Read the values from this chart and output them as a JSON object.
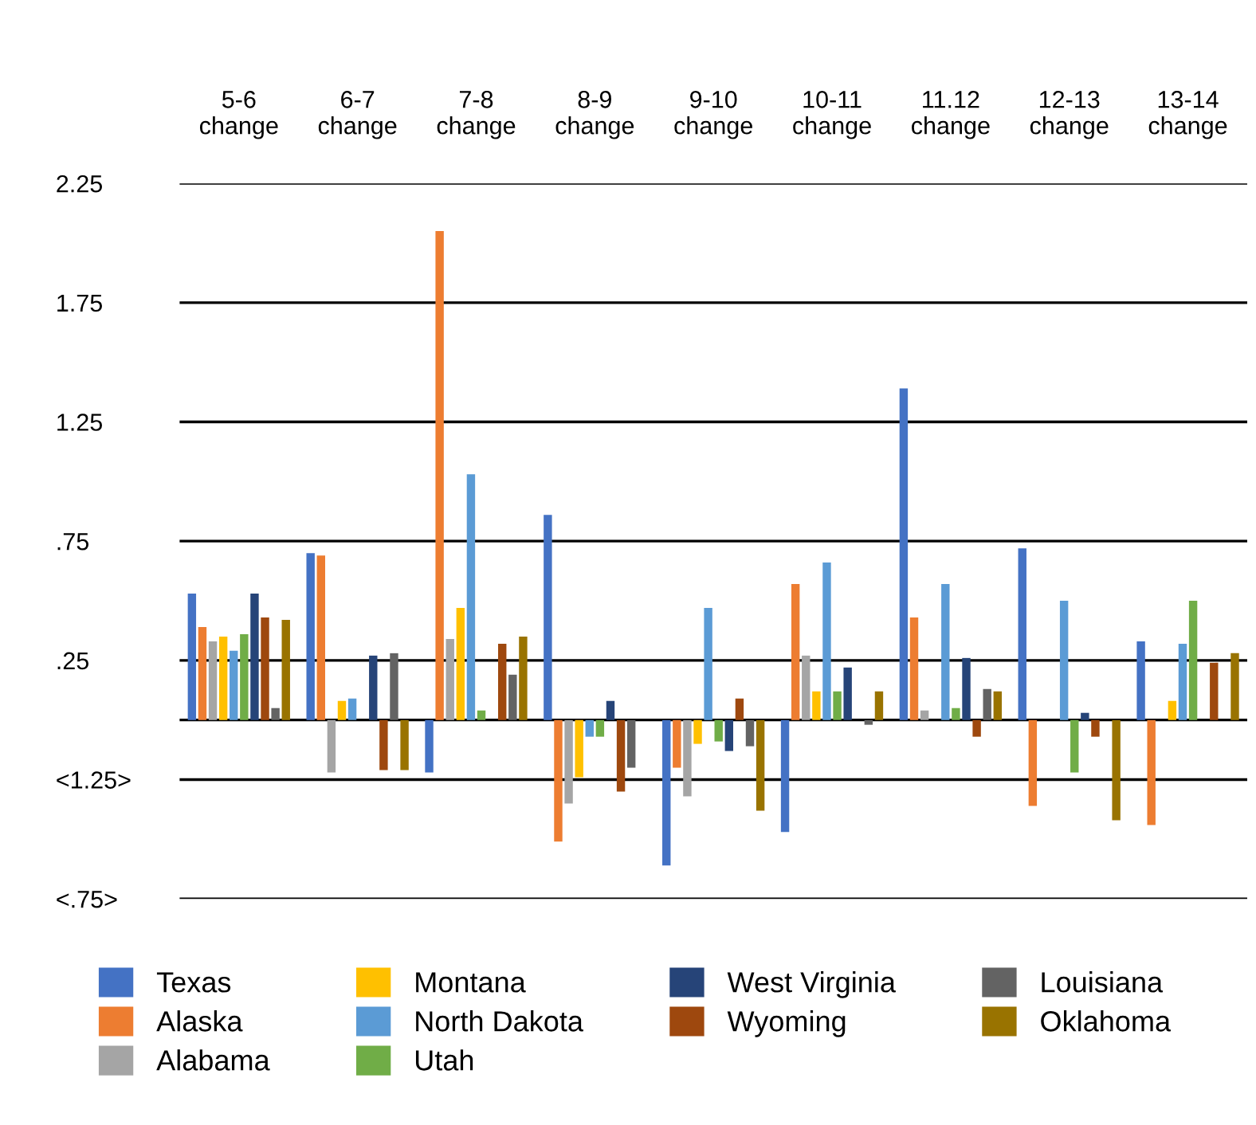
{
  "chart_data": {
    "type": "bar",
    "categories": [
      "5-6\nchange",
      "6-7\nchange",
      "7-8\nchange",
      "8-9\nchange",
      "9-10\nchange",
      "10-11\nchange",
      "11.12\nchange",
      "12-13\nchange",
      "13-14\nchange"
    ],
    "series": [
      {
        "name": "Texas",
        "color": "#4472c4",
        "values": [
          0.53,
          0.7,
          -0.22,
          0.86,
          -0.61,
          -0.47,
          1.39,
          0.72,
          0.33
        ]
      },
      {
        "name": "Alaska",
        "color": "#ed7d31",
        "values": [
          0.39,
          0.69,
          2.05,
          -0.51,
          -0.2,
          0.57,
          0.43,
          -0.36,
          -0.44
        ]
      },
      {
        "name": "Alabama",
        "color": "#a5a5a5",
        "values": [
          0.33,
          -0.22,
          0.34,
          -0.35,
          -0.32,
          0.27,
          0.04,
          0,
          0
        ]
      },
      {
        "name": "Montana",
        "color": "#ffc000",
        "values": [
          0.35,
          0.08,
          0.47,
          -0.24,
          -0.1,
          0.12,
          0,
          0,
          0.08
        ]
      },
      {
        "name": "North Dakota",
        "color": "#5b9bd5",
        "values": [
          0.29,
          0.09,
          1.03,
          -0.07,
          0.47,
          0.66,
          0.57,
          0.5,
          0.32
        ]
      },
      {
        "name": "Utah",
        "color": "#70ad47",
        "values": [
          0.36,
          0,
          0.04,
          -0.07,
          -0.09,
          0.12,
          0.05,
          -0.22,
          0.5
        ]
      },
      {
        "name": "West Virginia",
        "color": "#264478",
        "values": [
          0.53,
          0.27,
          0,
          0.08,
          -0.13,
          0.22,
          0.26,
          0.03,
          0
        ]
      },
      {
        "name": "Wyoming",
        "color": "#9e480e",
        "values": [
          0.43,
          -0.21,
          0.32,
          -0.3,
          0.09,
          0,
          -0.07,
          -0.07,
          0.24
        ]
      },
      {
        "name": "Louisiana",
        "color": "#636363",
        "values": [
          0.05,
          0.28,
          0.19,
          -0.2,
          -0.11,
          -0.02,
          0.13,
          0,
          0
        ]
      },
      {
        "name": "Oklahoma",
        "color": "#997300",
        "values": [
          0.42,
          -0.21,
          0.35,
          0,
          -0.38,
          0.12,
          0.12,
          -0.42,
          0.28
        ]
      }
    ],
    "ylim": [
      -0.75,
      2.25
    ],
    "yticks": [
      2.25,
      1.75,
      1.25,
      {
        "value": 0.75,
        "label": ".75"
      },
      {
        "value": 0.25,
        "label": ".25"
      },
      {
        "value": 0,
        "label": null
      },
      {
        "value": -0.25,
        "label": "<1.25>"
      },
      {
        "value": -0.75,
        "label": "<.75>"
      }
    ],
    "grid": "y",
    "legend": "bottom"
  }
}
